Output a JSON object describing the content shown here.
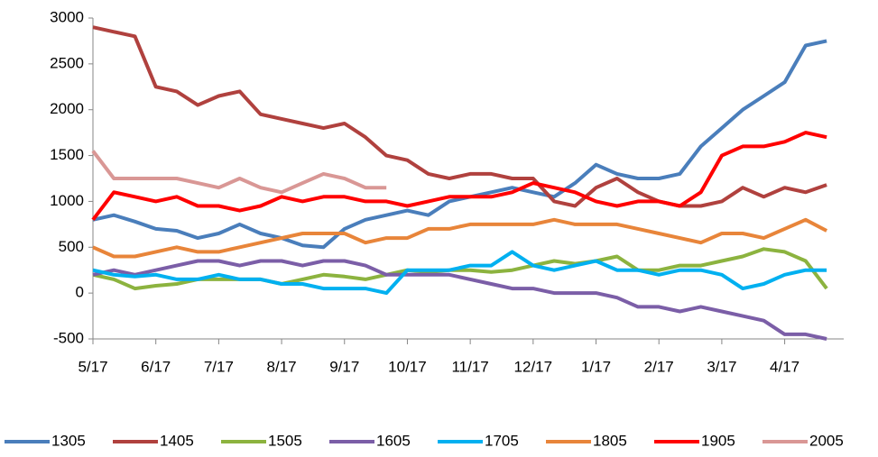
{
  "chart_data": {
    "type": "line",
    "categories": [
      "5/17",
      null,
      null,
      "6/17",
      null,
      null,
      "7/17",
      null,
      null,
      "8/17",
      null,
      null,
      "9/17",
      null,
      null,
      "10/17",
      null,
      null,
      "11/17",
      null,
      null,
      "12/17",
      null,
      null,
      "1/17",
      null,
      null,
      "2/17",
      null,
      null,
      "3/17",
      null,
      null,
      "4/17",
      null,
      null
    ],
    "ylim": [
      -500,
      3000
    ],
    "yticks": [
      -500,
      0,
      500,
      1000,
      1500,
      2000,
      2500,
      3000
    ],
    "grid": false,
    "legend": "bottom",
    "series": [
      {
        "name": "1305",
        "color": "#4a7ebb",
        "values": [
          800,
          850,
          780,
          700,
          680,
          600,
          650,
          750,
          650,
          600,
          520,
          500,
          700,
          800,
          850,
          900,
          850,
          1000,
          1050,
          1100,
          1150,
          1100,
          1050,
          1200,
          1400,
          1300,
          1250,
          1250,
          1300,
          1600,
          1800,
          2000,
          2150,
          2300,
          2700,
          2750
        ]
      },
      {
        "name": "1405",
        "color": "#b0413e",
        "values": [
          2900,
          2850,
          2800,
          2250,
          2200,
          2050,
          2150,
          2200,
          1950,
          1900,
          1850,
          1800,
          1850,
          1700,
          1500,
          1450,
          1300,
          1250,
          1300,
          1300,
          1250,
          1250,
          1000,
          950,
          1150,
          1250,
          1100,
          1000,
          950,
          950,
          1000,
          1150,
          1050,
          1150,
          1100,
          1180
        ]
      },
      {
        "name": "1505",
        "color": "#8cb33f",
        "values": [
          200,
          150,
          50,
          80,
          100,
          150,
          150,
          150,
          150,
          100,
          150,
          200,
          180,
          150,
          200,
          250,
          230,
          250,
          250,
          230,
          250,
          300,
          350,
          320,
          350,
          400,
          250,
          250,
          300,
          300,
          350,
          400,
          480,
          450,
          350,
          50
        ]
      },
      {
        "name": "1605",
        "color": "#7b5ea7",
        "values": [
          200,
          250,
          200,
          250,
          300,
          350,
          350,
          300,
          350,
          350,
          300,
          350,
          350,
          300,
          200,
          200,
          200,
          200,
          150,
          100,
          50,
          50,
          0,
          0,
          0,
          -50,
          -150,
          -150,
          -200,
          -150,
          -200,
          -250,
          -300,
          -450,
          -450,
          -500
        ]
      },
      {
        "name": "1705",
        "color": "#00b0f0",
        "values": [
          250,
          200,
          180,
          200,
          150,
          150,
          200,
          150,
          150,
          100,
          100,
          50,
          50,
          50,
          0,
          250,
          250,
          250,
          300,
          300,
          450,
          300,
          250,
          300,
          350,
          250,
          250,
          200,
          250,
          250,
          200,
          50,
          100,
          200,
          250,
          250
        ]
      },
      {
        "name": "1805",
        "color": "#e8853a",
        "values": [
          500,
          400,
          400,
          450,
          500,
          450,
          450,
          500,
          550,
          600,
          650,
          650,
          650,
          550,
          600,
          600,
          700,
          700,
          750,
          750,
          750,
          750,
          800,
          750,
          750,
          750,
          700,
          650,
          600,
          550,
          650,
          650,
          600,
          700,
          800,
          680
        ]
      },
      {
        "name": "1905",
        "color": "#ff0000",
        "values": [
          800,
          1100,
          1050,
          1000,
          1050,
          950,
          950,
          900,
          950,
          1050,
          1000,
          1050,
          1050,
          1000,
          1000,
          950,
          1000,
          1050,
          1050,
          1050,
          1100,
          1200,
          1150,
          1100,
          1000,
          950,
          1000,
          1000,
          950,
          1100,
          1500,
          1600,
          1600,
          1650,
          1750,
          1700
        ]
      },
      {
        "name": "2005",
        "color": "#d99795",
        "values": [
          1550,
          1250,
          1250,
          1250,
          1250,
          1200,
          1150,
          1250,
          1150,
          1100,
          1200,
          1300,
          1250,
          1150,
          1150,
          null,
          null,
          null,
          null,
          null,
          null,
          null,
          null,
          null,
          null,
          null,
          null,
          null,
          null,
          null,
          null,
          null,
          null,
          null,
          null,
          null
        ]
      }
    ]
  }
}
